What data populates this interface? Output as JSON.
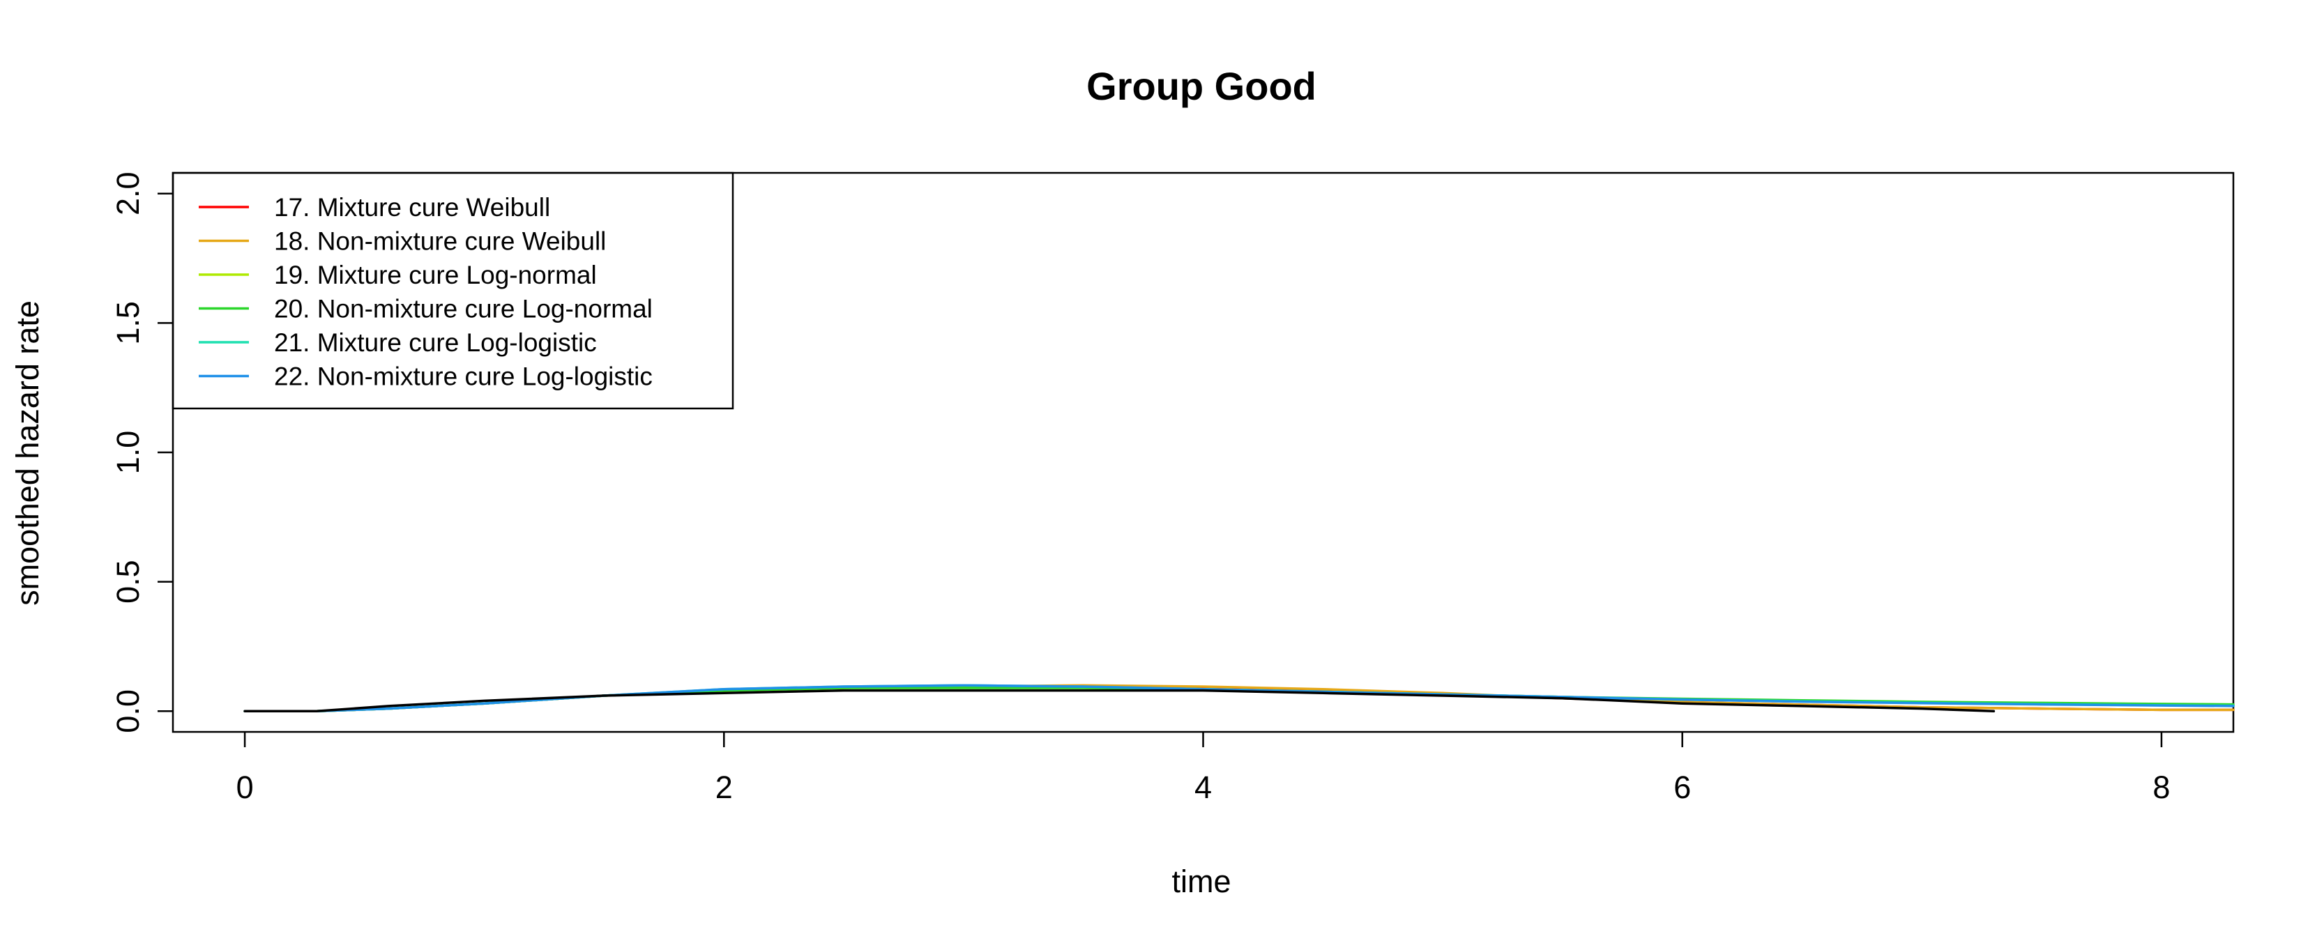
{
  "chart_data": {
    "type": "line",
    "title": "Group Good",
    "xlabel": "time",
    "ylabel": "smoothed hazard rate",
    "xlim": [
      -0.3,
      8.3
    ],
    "ylim": [
      -0.08,
      2.08
    ],
    "x_ticks": [
      "0",
      "2",
      "4",
      "6",
      "8"
    ],
    "y_ticks": [
      "0.0",
      "0.5",
      "1.0",
      "1.5",
      "2.0"
    ],
    "grid": false,
    "legend_position": "top-left",
    "series": [
      {
        "name": "observed",
        "color": "#000000",
        "x": [
          0,
          0.3,
          0.6,
          1.0,
          1.5,
          2.0,
          2.5,
          3.0,
          3.5,
          4.0,
          4.5,
          5.0,
          5.5,
          6.0,
          6.5,
          7.0,
          7.3
        ],
        "y": [
          0.0,
          0.0,
          0.02,
          0.04,
          0.06,
          0.07,
          0.08,
          0.08,
          0.08,
          0.08,
          0.07,
          0.06,
          0.05,
          0.03,
          0.02,
          0.01,
          0.0
        ]
      },
      {
        "name": "17. Mixture cure Weibull",
        "color": "#FF0000",
        "x": [
          0,
          0.3,
          0.6,
          1.0,
          1.5,
          2.0,
          2.5,
          3.0,
          3.5,
          4.0,
          4.5,
          5.0,
          5.5,
          6.0,
          6.5,
          7.0,
          7.5,
          8.0,
          8.3
        ],
        "y": [
          0.0,
          0.0,
          0.01,
          0.03,
          0.06,
          0.08,
          0.09,
          0.095,
          0.095,
          0.09,
          0.08,
          0.065,
          0.05,
          0.035,
          0.025,
          0.015,
          0.01,
          0.005,
          0.005
        ]
      },
      {
        "name": "18. Non-mixture cure Weibull",
        "color": "#E6A817",
        "x": [
          0,
          0.3,
          0.6,
          1.0,
          1.5,
          2.0,
          2.5,
          3.0,
          3.5,
          4.0,
          4.5,
          5.0,
          5.5,
          6.0,
          6.5,
          7.0,
          7.5,
          8.0,
          8.3
        ],
        "y": [
          0.0,
          0.0,
          0.01,
          0.03,
          0.06,
          0.08,
          0.09,
          0.095,
          0.1,
          0.095,
          0.085,
          0.07,
          0.05,
          0.035,
          0.025,
          0.015,
          0.01,
          0.005,
          0.005
        ]
      },
      {
        "name": "19. Mixture cure Log-normal",
        "color": "#AEEA00",
        "x": [
          0,
          0.3,
          0.6,
          1.0,
          1.5,
          2.0,
          2.5,
          3.0,
          3.5,
          4.0,
          4.5,
          5.0,
          5.5,
          6.0,
          6.5,
          7.0,
          7.5,
          8.0,
          8.3
        ],
        "y": [
          0.0,
          0.0,
          0.01,
          0.03,
          0.06,
          0.08,
          0.09,
          0.09,
          0.09,
          0.085,
          0.075,
          0.065,
          0.055,
          0.045,
          0.038,
          0.032,
          0.028,
          0.024,
          0.022
        ]
      },
      {
        "name": "20. Non-mixture cure Log-normal",
        "color": "#2BD62B",
        "x": [
          0,
          0.3,
          0.6,
          1.0,
          1.5,
          2.0,
          2.5,
          3.0,
          3.5,
          4.0,
          4.5,
          5.0,
          5.5,
          6.0,
          6.5,
          7.0,
          7.5,
          8.0,
          8.3
        ],
        "y": [
          0.0,
          0.0,
          0.01,
          0.03,
          0.06,
          0.08,
          0.09,
          0.09,
          0.09,
          0.085,
          0.075,
          0.065,
          0.055,
          0.048,
          0.042,
          0.036,
          0.032,
          0.028,
          0.026
        ]
      },
      {
        "name": "21. Mixture cure Log-logistic",
        "color": "#1FE0B0",
        "x": [
          0,
          0.3,
          0.6,
          1.0,
          1.5,
          2.0,
          2.5,
          3.0,
          3.5,
          4.0,
          4.5,
          5.0,
          5.5,
          6.0,
          6.5,
          7.0,
          7.5,
          8.0,
          8.3
        ],
        "y": [
          0.0,
          0.0,
          0.01,
          0.03,
          0.06,
          0.085,
          0.095,
          0.1,
          0.095,
          0.085,
          0.075,
          0.065,
          0.055,
          0.045,
          0.038,
          0.032,
          0.027,
          0.023,
          0.021
        ]
      },
      {
        "name": "22. Non-mixture cure Log-logistic",
        "color": "#1E90E8",
        "x": [
          0,
          0.3,
          0.6,
          1.0,
          1.5,
          2.0,
          2.5,
          3.0,
          3.5,
          4.0,
          4.5,
          5.0,
          5.5,
          6.0,
          6.5,
          7.0,
          7.5,
          8.0,
          8.3
        ],
        "y": [
          0.0,
          0.0,
          0.01,
          0.03,
          0.06,
          0.085,
          0.095,
          0.1,
          0.095,
          0.085,
          0.075,
          0.065,
          0.055,
          0.045,
          0.037,
          0.031,
          0.026,
          0.022,
          0.02
        ]
      }
    ]
  }
}
